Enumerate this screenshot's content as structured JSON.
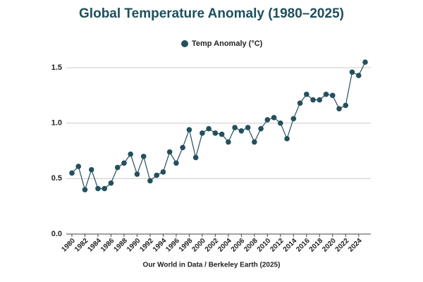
{
  "chart_data": {
    "type": "line",
    "title": "Global Temperature Anomaly (1980–2025)",
    "source": "Our World in Data / Berkeley Earth (2025)",
    "legend_position": "top",
    "grid": true,
    "x": [
      1980,
      1981,
      1982,
      1983,
      1984,
      1985,
      1986,
      1987,
      1988,
      1989,
      1990,
      1991,
      1992,
      1993,
      1994,
      1995,
      1996,
      1997,
      1998,
      1999,
      2000,
      2001,
      2002,
      2003,
      2004,
      2005,
      2006,
      2007,
      2008,
      2009,
      2010,
      2011,
      2012,
      2013,
      2014,
      2015,
      2016,
      2017,
      2018,
      2019,
      2020,
      2021,
      2022,
      2023,
      2024,
      2025
    ],
    "series": [
      {
        "name": "Temp Anomaly (°C)",
        "color": "#24505e",
        "values": [
          0.55,
          0.61,
          0.4,
          0.58,
          0.41,
          0.41,
          0.46,
          0.6,
          0.64,
          0.72,
          0.54,
          0.7,
          0.48,
          0.53,
          0.56,
          0.74,
          0.64,
          0.78,
          0.94,
          0.69,
          0.91,
          0.95,
          0.91,
          0.9,
          0.83,
          0.96,
          0.93,
          0.96,
          0.83,
          0.95,
          1.03,
          1.05,
          1.0,
          0.86,
          1.04,
          1.18,
          1.26,
          1.21,
          1.21,
          1.26,
          1.25,
          1.13,
          1.16,
          1.46,
          1.43,
          1.55
        ]
      }
    ],
    "xlim": [
      1980,
      2025
    ],
    "xticks": [
      1980,
      1982,
      1984,
      1986,
      1988,
      1990,
      1992,
      1994,
      1996,
      1998,
      2000,
      2002,
      2004,
      2006,
      2008,
      2010,
      2012,
      2014,
      2016,
      2018,
      2020,
      2022,
      2024
    ],
    "ylim": [
      0,
      1.5
    ],
    "yticks": [
      {
        "value": 0,
        "label": "0.0"
      },
      {
        "value": 0.5,
        "label": "0.5"
      },
      {
        "value": 1,
        "label": "1.0"
      },
      {
        "value": 1.5,
        "label": "1.5"
      }
    ]
  }
}
